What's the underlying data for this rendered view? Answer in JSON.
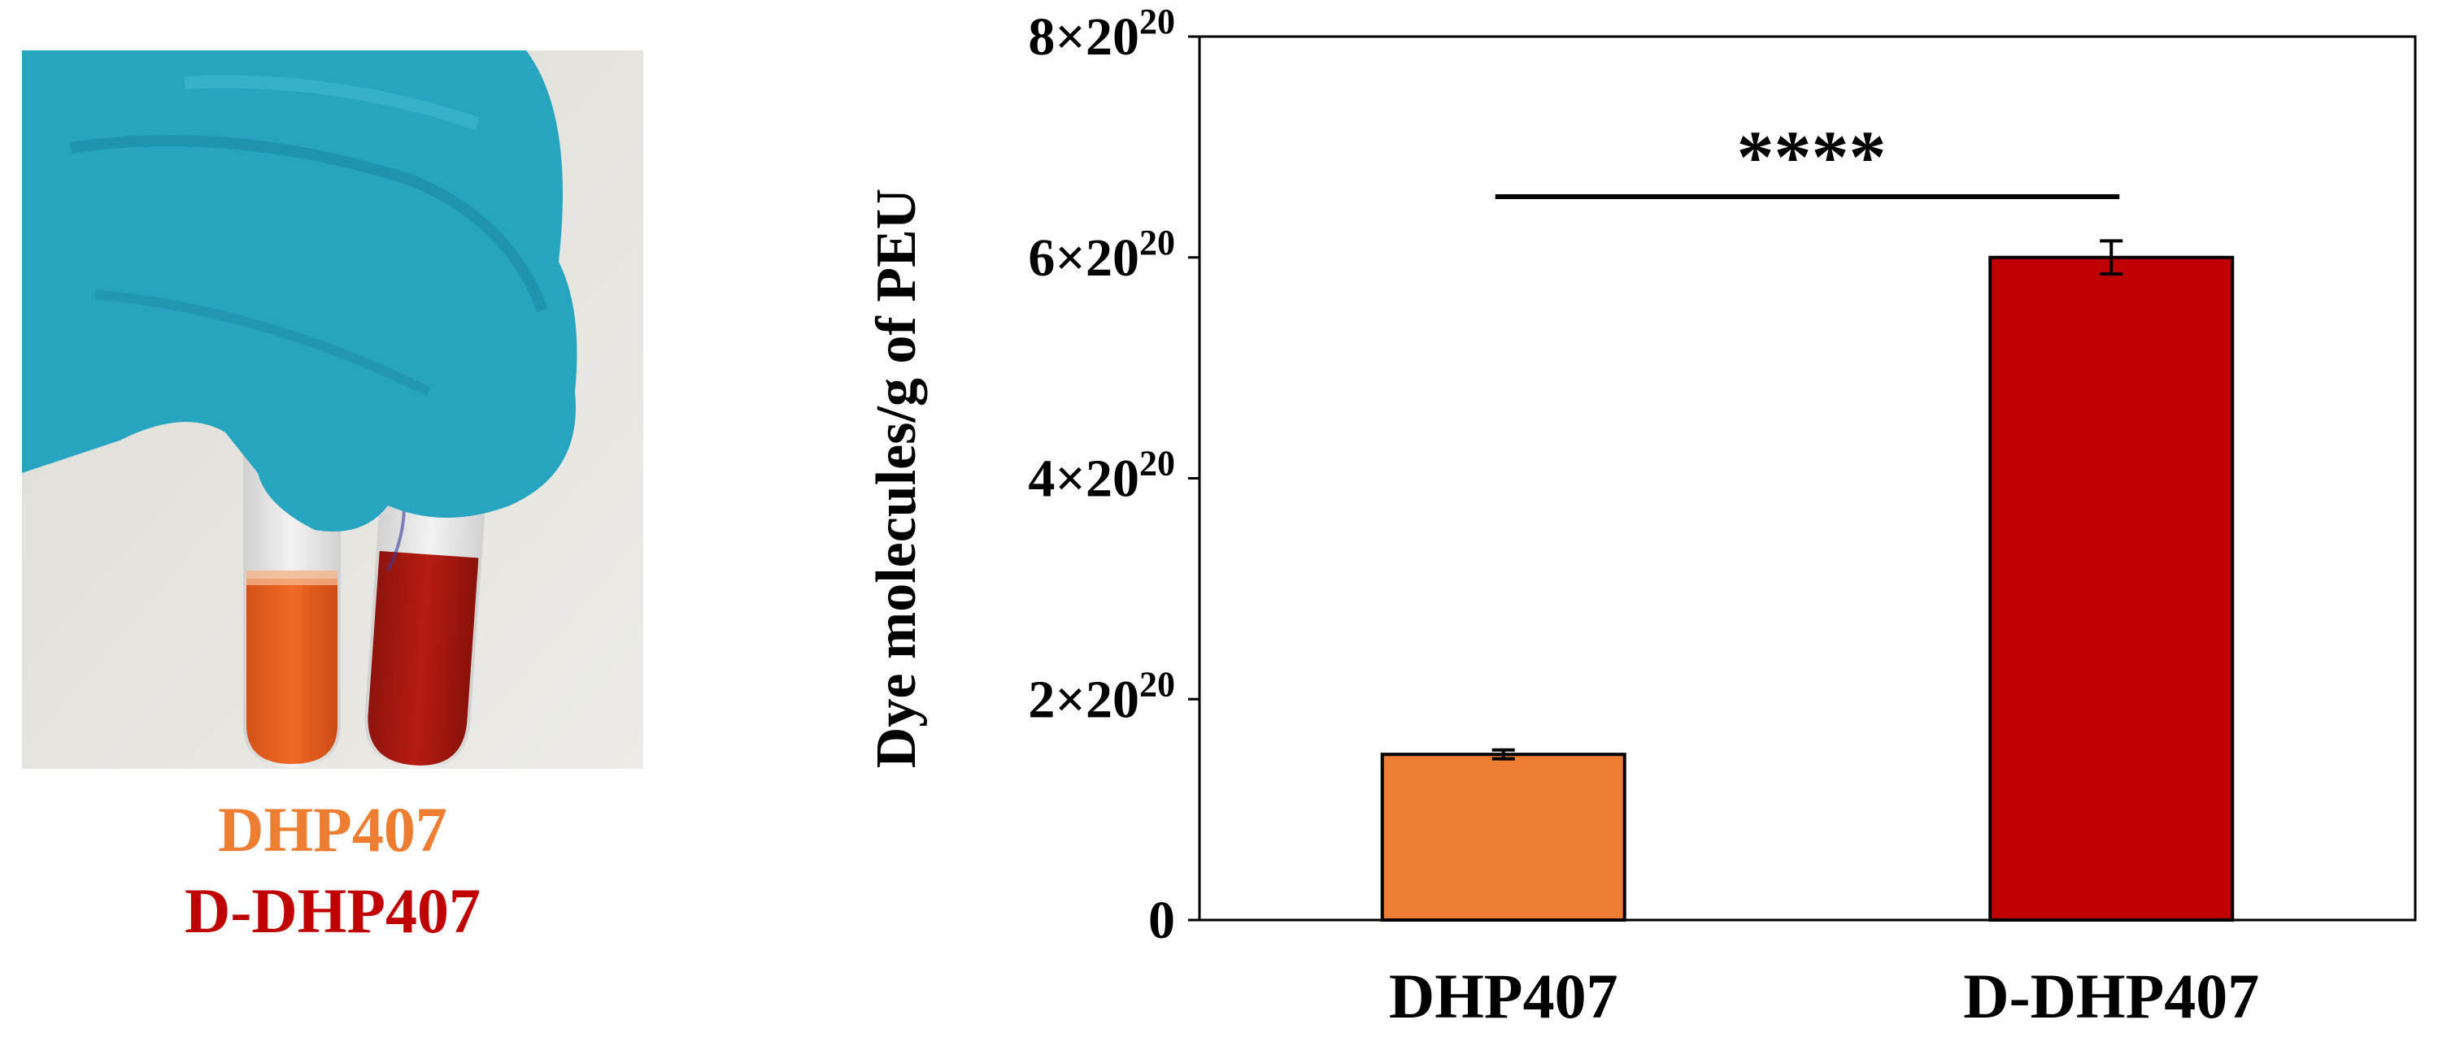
{
  "photo": {
    "sample_labels": [
      {
        "text": "DHP407",
        "color": "#ED7D31"
      },
      {
        "text": "D-DHP407",
        "color": "#C00000"
      }
    ],
    "colors": {
      "glove": "#27a4c0",
      "tube_1_liquid": "#e8621e",
      "tube_2_liquid": "#b01a10",
      "background": "#e3e1dc"
    }
  },
  "chart_data": {
    "type": "bar",
    "categories": [
      "DHP407",
      "D-DHP407"
    ],
    "values": [
      1.5,
      6.0
    ],
    "errors": [
      0.04,
      0.15
    ],
    "colors": [
      "#ED7D31",
      "#C00000"
    ],
    "value_scale_note": "values in units of 10^20",
    "ylim": [
      0,
      8
    ],
    "yticks": [
      0,
      2,
      4,
      6,
      8
    ],
    "ytick_labels": [
      "0",
      "2×20",
      "4×20",
      "6×20",
      "8×20"
    ],
    "ytick_exponent": "20",
    "ylabel": "Dye molecules/g of PEU",
    "xlabel": "",
    "annotation": {
      "text": "****",
      "between": [
        "DHP407",
        "D-DHP407"
      ]
    },
    "grid": false
  }
}
